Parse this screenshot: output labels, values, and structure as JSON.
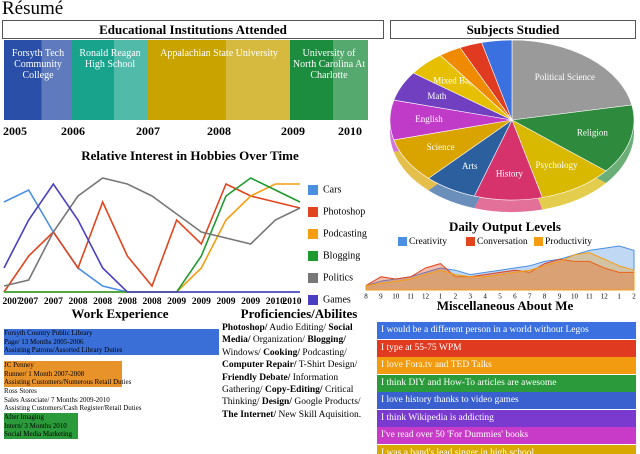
{
  "title": "Résumé",
  "education": {
    "heading": "Educational Institutions Attended",
    "institutions": [
      {
        "name": "Forsyth Tech Community College",
        "color": "#2a4fa8"
      },
      {
        "name": "Ronald Reagan High School",
        "color": "#17a38c"
      },
      {
        "name": "Appalachian State University",
        "color": "#c9a300"
      },
      {
        "name": "University of North Carolina At Charlotte",
        "color": "#1c8c3e"
      }
    ],
    "years": [
      "2005",
      "2006",
      "2007",
      "2008",
      "2009",
      "2010"
    ]
  },
  "subjects": {
    "type": "pie",
    "heading": "Subjects Studied",
    "categories": [
      "Political Science",
      "Religion",
      "Psychology",
      "History",
      "Arts",
      "Science",
      "English",
      "Math",
      "Mixed Bag",
      null,
      null,
      null
    ],
    "values": [
      22,
      14,
      10,
      9,
      7,
      9,
      8,
      6,
      5,
      3,
      3,
      4
    ],
    "colors": [
      "#9a9a9a",
      "#2e8b3e",
      "#d9b800",
      "#d6336c",
      "#2c5f9e",
      "#d9a400",
      "#c03cc8",
      "#7040c0",
      "#e6c000",
      "#f08a00",
      "#e03a20",
      "#3a70e0"
    ]
  },
  "hobbies": {
    "type": "line",
    "heading": "Relative Interest in Hobbies Over Time",
    "categories": [
      "2007",
      "2007",
      "2007",
      "2008",
      "2008",
      "2008",
      "2008",
      "2009",
      "2009",
      "2009",
      "2009",
      "2010",
      "2010"
    ],
    "ylim": [
      0,
      100
    ],
    "series": [
      {
        "name": "Cars",
        "color": "#4a8fe0",
        "values": [
          75,
          85,
          50,
          20,
          5,
          0,
          0,
          0,
          0,
          0,
          0,
          0,
          0
        ]
      },
      {
        "name": "Photoshop",
        "color": "#e0451e",
        "values": [
          0,
          30,
          50,
          20,
          75,
          30,
          5,
          60,
          40,
          90,
          80,
          75,
          70
        ]
      },
      {
        "name": "Podcasting",
        "color": "#f59d10",
        "values": [
          0,
          0,
          0,
          0,
          0,
          0,
          0,
          0,
          20,
          60,
          80,
          90,
          90
        ]
      },
      {
        "name": "Blogging",
        "color": "#1f9a2e",
        "values": [
          0,
          0,
          0,
          0,
          0,
          0,
          0,
          0,
          30,
          80,
          95,
          85,
          75
        ]
      },
      {
        "name": "Politics",
        "color": "#777777",
        "values": [
          5,
          10,
          50,
          80,
          95,
          90,
          80,
          65,
          50,
          45,
          40,
          60,
          70
        ]
      },
      {
        "name": "Games",
        "color": "#4a3fc0",
        "values": [
          20,
          60,
          90,
          60,
          20,
          0,
          0,
          0,
          0,
          0,
          0,
          0,
          0
        ]
      }
    ]
  },
  "output": {
    "type": "area",
    "heading": "Daily Output Levels",
    "categories": [
      "8",
      "9",
      "10",
      "11",
      "12",
      "1",
      "2",
      "3",
      "4",
      "5",
      "6",
      "7",
      "8",
      "9",
      "10",
      "11",
      "12",
      "1",
      "2"
    ],
    "ylim": [
      0,
      100
    ],
    "series": [
      {
        "name": "Creativity",
        "color": "#4a8fe0",
        "values": [
          10,
          20,
          25,
          30,
          40,
          50,
          45,
          35,
          40,
          45,
          50,
          55,
          65,
          70,
          80,
          90,
          95,
          100,
          90
        ]
      },
      {
        "name": "Conversation",
        "color": "#e0451e",
        "values": [
          10,
          30,
          25,
          30,
          50,
          60,
          30,
          30,
          35,
          40,
          45,
          40,
          60,
          70,
          65,
          65,
          50,
          40,
          40
        ]
      },
      {
        "name": "Productivity",
        "color": "#f59d10",
        "values": [
          10,
          15,
          20,
          25,
          35,
          45,
          35,
          30,
          30,
          35,
          40,
          45,
          55,
          65,
          80,
          85,
          70,
          55,
          45
        ]
      }
    ]
  },
  "experience": {
    "heading": "Work Experience",
    "jobs": [
      {
        "lines": [
          "Forsyth Country Public Library",
          "Page/ 13 Months 2005-2006",
          "Assisting Patrons/Assorted Library Duties"
        ],
        "color": "#3a6fd8"
      },
      {
        "lines": [
          "JC Penney",
          "Runner/ 1 Month 2007-2008",
          "Assisting Customers/Numerous Retail Duties"
        ],
        "color": "#e8922a"
      },
      {
        "lines": [
          "Ross Stores",
          "Sales Associate/ 7 Months 2009-2010",
          "Assisting Customers/Cash Register/Retail Duties"
        ],
        "color": "#ffffff"
      },
      {
        "lines": [
          "After Imaging",
          "Intern/ 3 Months 2010",
          "Social Media Marketing"
        ],
        "color": "#2a9a3a"
      }
    ]
  },
  "proficiencies": {
    "heading": "Proficiencies/Abilites",
    "items": [
      {
        "text": "Photoshop/",
        "bold": true
      },
      {
        "text": "Audio Editing/",
        "bold": false
      },
      {
        "text": "Social Media/",
        "bold": true
      },
      {
        "text": "Organization/",
        "bold": false
      },
      {
        "text": "Blogging/",
        "bold": true
      },
      {
        "text": "Windows/",
        "bold": false
      },
      {
        "text": "Cooking/",
        "bold": true
      },
      {
        "text": "Podcasting/",
        "bold": false
      },
      {
        "text": "Computer Repair/",
        "bold": true
      },
      {
        "text": "T-Shirt Design/",
        "bold": false
      },
      {
        "text": "Friendly Debate/",
        "bold": true
      },
      {
        "text": "Information Gathering/",
        "bold": false
      },
      {
        "text": "Copy-Editing/",
        "bold": true
      },
      {
        "text": "Critical Thinking/",
        "bold": false
      },
      {
        "text": "Design/",
        "bold": true
      },
      {
        "text": "Google Products/",
        "bold": false
      },
      {
        "text": "The Internet/",
        "bold": true
      },
      {
        "text": "New Skill Aquisition.",
        "bold": false
      }
    ]
  },
  "misc": {
    "heading": "Miscellaneous About Me",
    "items": [
      {
        "text": "I would be a different person in a world without Legos",
        "color": "#3a70e0"
      },
      {
        "text": "I type at 55-75 WPM",
        "color": "#e03a20"
      },
      {
        "text": "I love Fora.tv and TED Talks",
        "color": "#f29a10"
      },
      {
        "text": "I think DIY and How-To articles are awesome",
        "color": "#2a9a3a"
      },
      {
        "text": "I love history thanks to video games",
        "color": "#3a60d0"
      },
      {
        "text": "I think Wikipedia is addicting",
        "color": "#7a3ad0"
      },
      {
        "text": "I've read over 50 'For Dummies' books",
        "color": "#c83ac8"
      },
      {
        "text": "I was a band's lead singer in high school",
        "color": "#d9a800"
      }
    ]
  }
}
